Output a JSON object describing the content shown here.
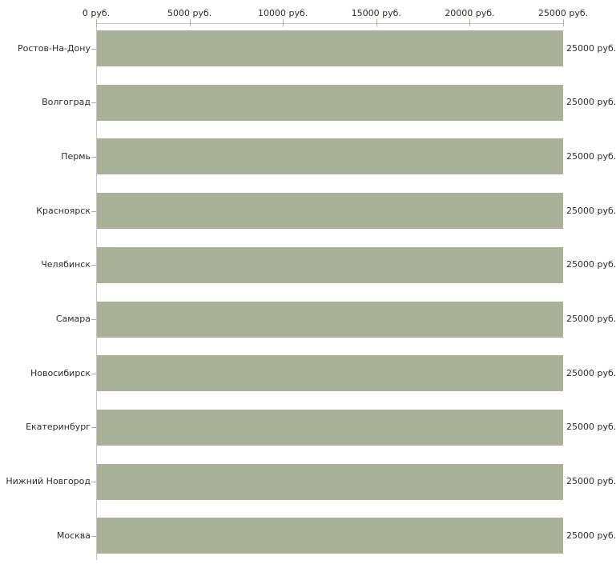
{
  "chart_data": {
    "type": "bar",
    "orientation": "horizontal",
    "title": "",
    "xlabel": "",
    "ylabel": "",
    "unit": "руб.",
    "axis_position": "top",
    "grid": false,
    "legend": false,
    "xlim": [
      0,
      25000
    ],
    "categories": [
      "Ростов-На-Дону",
      "Волгоград",
      "Пермь",
      "Красноярск",
      "Челябинск",
      "Самара",
      "Новосибирск",
      "Екатеринбург",
      "Нижний Новгород",
      "Москва"
    ],
    "values": [
      25000,
      25000,
      25000,
      25000,
      25000,
      25000,
      25000,
      25000,
      25000,
      25000
    ],
    "value_labels": [
      "25000 руб.",
      "25000 руб.",
      "25000 руб.",
      "25000 руб.",
      "25000 руб.",
      "25000 руб.",
      "25000 руб.",
      "25000 руб.",
      "25000 руб.",
      "25000 руб."
    ],
    "x_ticks": {
      "values": [
        0,
        5000,
        10000,
        15000,
        20000,
        25000
      ],
      "labels": [
        "0 руб.",
        "5000 руб.",
        "10000 руб.",
        "15000 руб.",
        "20000 руб.",
        "25000 руб."
      ]
    }
  },
  "colors": {
    "background": "#ffffff",
    "bar_fill": "#abb199",
    "axis_line": "#c6c6c6",
    "tick": "#b3b085",
    "text": "#2e2e2e"
  }
}
